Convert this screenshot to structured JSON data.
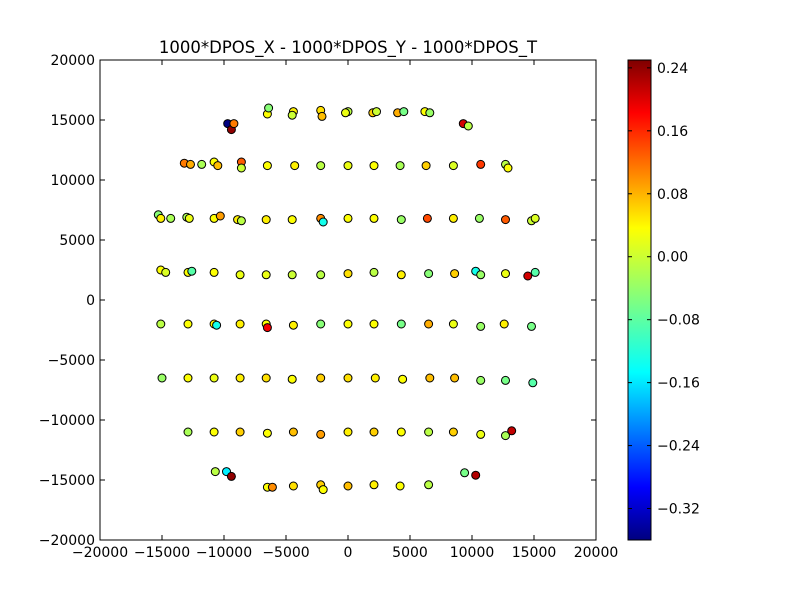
{
  "chart_data": {
    "type": "scatter",
    "title": "1000*DPOS_X - 1000*DPOS_Y - 1000*DPOS_T",
    "xlabel": "",
    "ylabel": "",
    "xlim": [
      -20000,
      20000
    ],
    "ylim": [
      -20000,
      20000
    ],
    "xticks": [
      "−20000",
      "−15000",
      "−10000",
      "−5000",
      "0",
      "5000",
      "10000",
      "15000",
      "20000"
    ],
    "xtick_values": [
      -20000,
      -15000,
      -10000,
      -5000,
      0,
      5000,
      10000,
      15000,
      20000
    ],
    "yticks": [
      "20000",
      "15000",
      "10000",
      "5000",
      "0",
      "−5000",
      "−10000",
      "−15000",
      "−20000"
    ],
    "ytick_values": [
      20000,
      15000,
      10000,
      5000,
      0,
      -5000,
      -10000,
      -15000,
      -20000
    ],
    "grid": false,
    "colorbar": {
      "colormap": "jet",
      "range": [
        -0.36,
        0.25
      ],
      "ticks": [
        "0.24",
        "0.16",
        "0.08",
        "0.00",
        "−0.08",
        "−0.16",
        "−0.24",
        "−0.32"
      ],
      "tick_values": [
        0.24,
        0.16,
        0.08,
        0.0,
        -0.08,
        -0.16,
        -0.24,
        -0.32
      ]
    },
    "points": [
      {
        "x": -9700,
        "y": 14700,
        "c": -0.36
      },
      {
        "x": -9400,
        "y": 14200,
        "c": 0.24
      },
      {
        "x": -9200,
        "y": 14700,
        "c": 0.1
      },
      {
        "x": -6500,
        "y": 15500,
        "c": 0.02
      },
      {
        "x": -6400,
        "y": 16000,
        "c": -0.05
      },
      {
        "x": -4400,
        "y": 15700,
        "c": 0.03
      },
      {
        "x": -4500,
        "y": 15400,
        "c": -0.01
      },
      {
        "x": -2200,
        "y": 15800,
        "c": 0.04
      },
      {
        "x": -2100,
        "y": 15300,
        "c": 0.06
      },
      {
        "x": 0,
        "y": 15700,
        "c": -0.02
      },
      {
        "x": -200,
        "y": 15600,
        "c": 0.01
      },
      {
        "x": 2000,
        "y": 15600,
        "c": 0.05
      },
      {
        "x": 2300,
        "y": 15700,
        "c": -0.01
      },
      {
        "x": 4000,
        "y": 15600,
        "c": 0.07
      },
      {
        "x": 4500,
        "y": 15700,
        "c": -0.06
      },
      {
        "x": 6200,
        "y": 15700,
        "c": 0.02
      },
      {
        "x": 6600,
        "y": 15600,
        "c": -0.04
      },
      {
        "x": 9300,
        "y": 14700,
        "c": 0.2
      },
      {
        "x": 9700,
        "y": 14500,
        "c": -0.02
      },
      {
        "x": -13200,
        "y": 11400,
        "c": 0.1
      },
      {
        "x": -12700,
        "y": 11300,
        "c": 0.07
      },
      {
        "x": -11800,
        "y": 11300,
        "c": -0.03
      },
      {
        "x": -10800,
        "y": 11500,
        "c": 0.02
      },
      {
        "x": -10500,
        "y": 11200,
        "c": 0.06
      },
      {
        "x": -8600,
        "y": 11500,
        "c": 0.12
      },
      {
        "x": -8600,
        "y": 11000,
        "c": -0.01
      },
      {
        "x": -6500,
        "y": 11200,
        "c": 0.02
      },
      {
        "x": -4300,
        "y": 11200,
        "c": 0.03
      },
      {
        "x": -2200,
        "y": 11200,
        "c": -0.02
      },
      {
        "x": 0,
        "y": 11200,
        "c": 0.01
      },
      {
        "x": 2100,
        "y": 11200,
        "c": 0.02
      },
      {
        "x": 4200,
        "y": 11200,
        "c": -0.03
      },
      {
        "x": 6300,
        "y": 11200,
        "c": 0.05
      },
      {
        "x": 8500,
        "y": 11200,
        "c": 0.0
      },
      {
        "x": 10700,
        "y": 11300,
        "c": 0.14
      },
      {
        "x": 12700,
        "y": 11300,
        "c": -0.02
      },
      {
        "x": 12900,
        "y": 11000,
        "c": 0.02
      },
      {
        "x": -15300,
        "y": 7100,
        "c": -0.05
      },
      {
        "x": -15100,
        "y": 6800,
        "c": 0.03
      },
      {
        "x": -14300,
        "y": 6800,
        "c": -0.03
      },
      {
        "x": -13000,
        "y": 6900,
        "c": -0.03
      },
      {
        "x": -12800,
        "y": 6800,
        "c": 0.01
      },
      {
        "x": -10800,
        "y": 6800,
        "c": 0.02
      },
      {
        "x": -10300,
        "y": 7000,
        "c": 0.08
      },
      {
        "x": -8900,
        "y": 6700,
        "c": 0.03
      },
      {
        "x": -8600,
        "y": 6600,
        "c": -0.02
      },
      {
        "x": -6600,
        "y": 6700,
        "c": 0.03
      },
      {
        "x": -4500,
        "y": 6700,
        "c": 0.02
      },
      {
        "x": -2200,
        "y": 6800,
        "c": 0.09
      },
      {
        "x": -2000,
        "y": 6500,
        "c": -0.12
      },
      {
        "x": 0,
        "y": 6800,
        "c": 0.02
      },
      {
        "x": 2100,
        "y": 6800,
        "c": 0.02
      },
      {
        "x": 4300,
        "y": 6700,
        "c": -0.04
      },
      {
        "x": 6400,
        "y": 6800,
        "c": 0.13
      },
      {
        "x": 8500,
        "y": 6800,
        "c": 0.03
      },
      {
        "x": 10600,
        "y": 6800,
        "c": -0.04
      },
      {
        "x": 12700,
        "y": 6700,
        "c": 0.12
      },
      {
        "x": 14800,
        "y": 6600,
        "c": -0.01
      },
      {
        "x": 15100,
        "y": 6800,
        "c": 0.0
      },
      {
        "x": -15100,
        "y": 2500,
        "c": 0.02
      },
      {
        "x": -14700,
        "y": 2300,
        "c": 0.0
      },
      {
        "x": -12900,
        "y": 2300,
        "c": 0.02
      },
      {
        "x": -12600,
        "y": 2400,
        "c": -0.08
      },
      {
        "x": -10800,
        "y": 2300,
        "c": 0.02
      },
      {
        "x": -8700,
        "y": 2100,
        "c": 0.01
      },
      {
        "x": -6600,
        "y": 2100,
        "c": 0.01
      },
      {
        "x": -4500,
        "y": 2100,
        "c": -0.01
      },
      {
        "x": -2200,
        "y": 2100,
        "c": -0.02
      },
      {
        "x": 0,
        "y": 2200,
        "c": 0.04
      },
      {
        "x": 2100,
        "y": 2300,
        "c": -0.02
      },
      {
        "x": 4300,
        "y": 2100,
        "c": 0.03
      },
      {
        "x": 6500,
        "y": 2200,
        "c": -0.05
      },
      {
        "x": 8600,
        "y": 2200,
        "c": 0.05
      },
      {
        "x": 10300,
        "y": 2400,
        "c": -0.12
      },
      {
        "x": 10700,
        "y": 2100,
        "c": -0.04
      },
      {
        "x": 12700,
        "y": 2200,
        "c": 0.01
      },
      {
        "x": 14500,
        "y": 2000,
        "c": 0.2
      },
      {
        "x": 15100,
        "y": 2300,
        "c": -0.08
      },
      {
        "x": -15100,
        "y": -2000,
        "c": -0.02
      },
      {
        "x": -12900,
        "y": -2000,
        "c": 0.02
      },
      {
        "x": -10800,
        "y": -2000,
        "c": 0.03
      },
      {
        "x": -10600,
        "y": -2100,
        "c": -0.12
      },
      {
        "x": -8700,
        "y": -2000,
        "c": 0.03
      },
      {
        "x": -6600,
        "y": -2000,
        "c": 0.02
      },
      {
        "x": -6500,
        "y": -2300,
        "c": 0.18
      },
      {
        "x": -4400,
        "y": -2100,
        "c": 0.03
      },
      {
        "x": -2200,
        "y": -2000,
        "c": -0.05
      },
      {
        "x": 0,
        "y": -2000,
        "c": 0.02
      },
      {
        "x": 2100,
        "y": -2000,
        "c": 0.02
      },
      {
        "x": 4300,
        "y": -2000,
        "c": -0.06
      },
      {
        "x": 6500,
        "y": -2000,
        "c": 0.07
      },
      {
        "x": 8500,
        "y": -2000,
        "c": 0.01
      },
      {
        "x": 10700,
        "y": -2200,
        "c": -0.04
      },
      {
        "x": 12600,
        "y": -2000,
        "c": 0.03
      },
      {
        "x": 14800,
        "y": -2200,
        "c": -0.06
      },
      {
        "x": -15000,
        "y": -6500,
        "c": -0.04
      },
      {
        "x": -12900,
        "y": -6500,
        "c": 0.02
      },
      {
        "x": -10800,
        "y": -6500,
        "c": 0.01
      },
      {
        "x": -8700,
        "y": -6500,
        "c": 0.03
      },
      {
        "x": -6600,
        "y": -6500,
        "c": 0.04
      },
      {
        "x": -4500,
        "y": -6600,
        "c": 0.02
      },
      {
        "x": -2200,
        "y": -6500,
        "c": 0.05
      },
      {
        "x": 0,
        "y": -6500,
        "c": 0.04
      },
      {
        "x": 2200,
        "y": -6500,
        "c": 0.03
      },
      {
        "x": 4400,
        "y": -6600,
        "c": 0.02
      },
      {
        "x": 6600,
        "y": -6500,
        "c": 0.06
      },
      {
        "x": 8600,
        "y": -6500,
        "c": 0.06
      },
      {
        "x": 10700,
        "y": -6700,
        "c": -0.04
      },
      {
        "x": 12700,
        "y": -6700,
        "c": -0.06
      },
      {
        "x": 14900,
        "y": -6900,
        "c": -0.08
      },
      {
        "x": -12900,
        "y": -11000,
        "c": -0.03
      },
      {
        "x": -10800,
        "y": -11000,
        "c": 0.02
      },
      {
        "x": -8700,
        "y": -11000,
        "c": 0.05
      },
      {
        "x": -6500,
        "y": -11100,
        "c": 0.02
      },
      {
        "x": -4400,
        "y": -11000,
        "c": 0.06
      },
      {
        "x": -2200,
        "y": -11200,
        "c": 0.08
      },
      {
        "x": 0,
        "y": -11000,
        "c": 0.03
      },
      {
        "x": 2100,
        "y": -11000,
        "c": 0.05
      },
      {
        "x": 4300,
        "y": -11000,
        "c": 0.02
      },
      {
        "x": 6500,
        "y": -11000,
        "c": -0.02
      },
      {
        "x": 8500,
        "y": -11000,
        "c": 0.05
      },
      {
        "x": 10700,
        "y": -11200,
        "c": 0.01
      },
      {
        "x": 12700,
        "y": -11300,
        "c": -0.03
      },
      {
        "x": 13200,
        "y": -10900,
        "c": 0.21
      },
      {
        "x": -10700,
        "y": -14300,
        "c": -0.02
      },
      {
        "x": -9800,
        "y": -14300,
        "c": -0.14
      },
      {
        "x": -9400,
        "y": -14700,
        "c": 0.24
      },
      {
        "x": -6500,
        "y": -15600,
        "c": 0.02
      },
      {
        "x": -6100,
        "y": -15600,
        "c": 0.09
      },
      {
        "x": -4400,
        "y": -15500,
        "c": 0.04
      },
      {
        "x": -2200,
        "y": -15400,
        "c": 0.05
      },
      {
        "x": -2000,
        "y": -15800,
        "c": 0.02
      },
      {
        "x": 0,
        "y": -15500,
        "c": 0.06
      },
      {
        "x": 2100,
        "y": -15400,
        "c": 0.03
      },
      {
        "x": 4200,
        "y": -15500,
        "c": 0.02
      },
      {
        "x": 6500,
        "y": -15400,
        "c": -0.02
      },
      {
        "x": 9400,
        "y": -14400,
        "c": -0.06
      },
      {
        "x": 10300,
        "y": -14600,
        "c": 0.22
      }
    ]
  }
}
